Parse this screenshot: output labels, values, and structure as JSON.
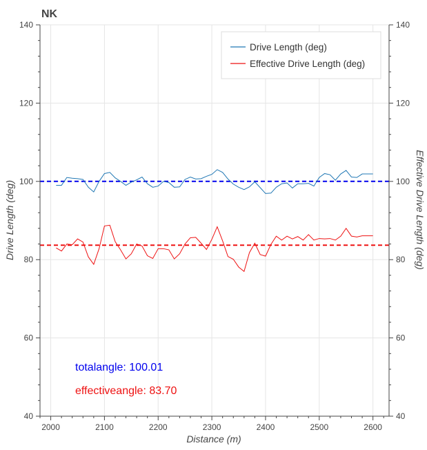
{
  "chart_data": {
    "type": "line",
    "title": "NK",
    "xlabel": "Distance (m)",
    "ylabel": "Drive Length (deg)",
    "ylabel_right": "Effective Drive Length (deg)",
    "xlim": [
      1980,
      2630
    ],
    "ylim": [
      40,
      140
    ],
    "xticks": [
      2000,
      2100,
      2200,
      2300,
      2400,
      2500,
      2600
    ],
    "yticks": [
      40,
      60,
      80,
      100,
      120,
      140
    ],
    "grid": true,
    "legend_position": "top-right",
    "series": [
      {
        "name": "Drive Length (deg)",
        "color": "#1f77b4",
        "x": [
          2010,
          2020,
          2030,
          2040,
          2050,
          2060,
          2070,
          2080,
          2090,
          2100,
          2110,
          2120,
          2130,
          2140,
          2150,
          2160,
          2170,
          2180,
          2190,
          2200,
          2210,
          2220,
          2230,
          2240,
          2250,
          2260,
          2270,
          2280,
          2290,
          2300,
          2310,
          2320,
          2330,
          2340,
          2350,
          2360,
          2370,
          2380,
          2390,
          2400,
          2410,
          2420,
          2430,
          2440,
          2450,
          2460,
          2470,
          2480,
          2490,
          2500,
          2510,
          2520,
          2530,
          2540,
          2550,
          2560,
          2570,
          2580,
          2590,
          2600
        ],
        "values": [
          99.0,
          99.0,
          101.0,
          100.8,
          100.7,
          100.5,
          98.5,
          97.3,
          100.0,
          102.0,
          102.3,
          100.9,
          100.0,
          99.0,
          99.8,
          100.4,
          101.1,
          99.4,
          98.5,
          98.8,
          100.0,
          99.7,
          98.5,
          98.6,
          100.5,
          101.1,
          100.6,
          100.7,
          101.3,
          101.8,
          103.0,
          102.3,
          100.6,
          99.3,
          98.5,
          97.9,
          98.6,
          99.9,
          98.4,
          96.9,
          97.0,
          98.5,
          99.4,
          99.6,
          98.3,
          99.4,
          99.4,
          99.5,
          98.8,
          101.0,
          102.0,
          101.7,
          100.3,
          101.9,
          102.8,
          101.1,
          101.0,
          101.9,
          101.9,
          101.9
        ]
      },
      {
        "name": "Effective Drive Length (deg)",
        "color": "#ee1111",
        "x": [
          2010,
          2020,
          2030,
          2040,
          2050,
          2060,
          2070,
          2080,
          2090,
          2100,
          2110,
          2120,
          2130,
          2140,
          2150,
          2160,
          2170,
          2180,
          2190,
          2200,
          2210,
          2220,
          2230,
          2240,
          2250,
          2260,
          2270,
          2280,
          2290,
          2300,
          2310,
          2320,
          2330,
          2340,
          2350,
          2360,
          2370,
          2380,
          2390,
          2400,
          2410,
          2420,
          2430,
          2440,
          2450,
          2460,
          2470,
          2480,
          2490,
          2500,
          2510,
          2520,
          2530,
          2540,
          2550,
          2560,
          2570,
          2580,
          2590,
          2600
        ],
        "values": [
          83.0,
          82.2,
          84.0,
          83.8,
          85.3,
          84.5,
          80.7,
          78.8,
          82.8,
          88.6,
          88.8,
          84.6,
          82.5,
          80.2,
          81.5,
          84.0,
          83.5,
          81.0,
          80.3,
          82.8,
          82.8,
          82.5,
          80.2,
          81.5,
          84.0,
          85.6,
          85.7,
          84.2,
          82.6,
          85.2,
          88.4,
          84.8,
          80.8,
          80.1,
          78.1,
          77.0,
          81.8,
          84.2,
          81.3,
          80.9,
          83.9,
          86.0,
          85.0,
          86.0,
          85.3,
          85.9,
          85.0,
          86.4,
          85.0,
          85.4,
          85.3,
          85.4,
          85.0,
          86.0,
          88.0,
          86.0,
          85.8,
          86.1,
          86.1,
          86.1
        ]
      }
    ],
    "reference_lines": [
      {
        "name": "totalangle",
        "value": 100.01,
        "color": "#0000ee",
        "style": "dashed"
      },
      {
        "name": "effectiveangle",
        "value": 83.7,
        "color": "#ee1111",
        "style": "dashed"
      }
    ],
    "annotations": [
      {
        "text": "totalangle: 100.01",
        "color": "#0000ee"
      },
      {
        "text": "effectiveangle: 83.70",
        "color": "#ee1111"
      }
    ]
  }
}
